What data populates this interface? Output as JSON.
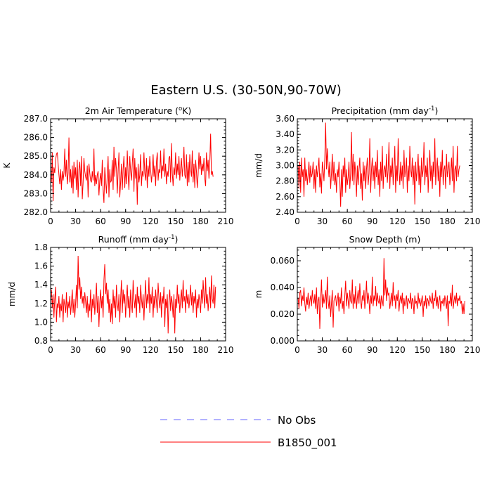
{
  "figure": {
    "title": "Eastern U.S. (30-50N,90-70W)"
  },
  "legend": [
    {
      "label": "No Obs",
      "color": "#6666ff",
      "style": "dashed"
    },
    {
      "label": "B1850_001",
      "color": "#ff0000",
      "style": "solid"
    }
  ],
  "chart_data": [
    {
      "type": "line",
      "title": "2m Air Temperature (",
      "title_sup": "o",
      "title_end": "K)",
      "title_sup2": "",
      "title_end2": "",
      "ylabel": "K",
      "xlabel": "",
      "xlim": [
        0,
        210
      ],
      "ylim": [
        282.0,
        287.0
      ],
      "xticks": [
        "0",
        "30",
        "60",
        "90",
        "120",
        "150",
        "180",
        "210"
      ],
      "yticks": [
        "282.0",
        "283.0",
        "284.0",
        "285.0",
        "286.0",
        "287.0"
      ],
      "series": [
        {
          "name": "B1850_001",
          "color": "#ff0000",
          "x_start": 1,
          "values": [
            283.6,
            285.2,
            282.6,
            284.4,
            284.1,
            284.8,
            285.1,
            285.2,
            284.6,
            284.0,
            283.5,
            284.3,
            283.2,
            284.2,
            283.7,
            284.1,
            285.4,
            283.9,
            284.8,
            283.5,
            284.1,
            286.0,
            283.6,
            284.3,
            283.3,
            284.5,
            283.0,
            284.7,
            283.8,
            284.4,
            283.2,
            284.8,
            282.8,
            284.3,
            284.7,
            283.4,
            285.0,
            282.7,
            283.6,
            284.9,
            284.2,
            283.9,
            283.7,
            284.5,
            282.8,
            284.6,
            284.1,
            283.7,
            283.6,
            284.2,
            283.7,
            285.4,
            283.4,
            284.0,
            283.5,
            284.0,
            284.2,
            282.9,
            283.7,
            284.1,
            283.4,
            284.8,
            283.2,
            282.5,
            284.4,
            283.7,
            283.0,
            284.0,
            285.0,
            282.8,
            284.3,
            283.6,
            283.7,
            284.8,
            283.2,
            285.5,
            283.9,
            284.9,
            284.3,
            283.0,
            284.2,
            285.2,
            282.8,
            283.6,
            284.6,
            283.2,
            284.3,
            285.0,
            283.3,
            284.4,
            283.5,
            285.3,
            284.0,
            283.2,
            285.0,
            284.2,
            283.7,
            284.6,
            285.4,
            283.1,
            284.9,
            283.8,
            284.4,
            282.4,
            284.6,
            283.6,
            284.0,
            285.1,
            283.4,
            284.2,
            283.9,
            285.2,
            284.1,
            283.7,
            284.9,
            283.3,
            284.5,
            283.9,
            285.0,
            284.3,
            283.6,
            284.1,
            285.1,
            283.9,
            284.5,
            283.4,
            284.7,
            285.2,
            283.7,
            284.3,
            284.1,
            285.3,
            283.8,
            284.5,
            284.2,
            285.4,
            283.9,
            284.6,
            283.5,
            284.2,
            283.9,
            284.9,
            285.0,
            283.6,
            285.7,
            284.1,
            283.4,
            284.4,
            284.0,
            285.2,
            283.8,
            284.6,
            284.0,
            285.0,
            283.7,
            284.4,
            284.9,
            283.9,
            284.5,
            285.5,
            284.0,
            283.8,
            285.1,
            283.4,
            284.7,
            283.6,
            285.1,
            284.3,
            283.9,
            285.3,
            283.6,
            284.6,
            283.3,
            284.8,
            284.2,
            283.3,
            284.0,
            285.2,
            284.3,
            285.0,
            284.0,
            284.6,
            284.2,
            284.9,
            283.8,
            283.4,
            285.2,
            284.2,
            284.8,
            283.8,
            284.7,
            286.2,
            284.0,
            284.2,
            283.9
          ]
        }
      ]
    },
    {
      "type": "line",
      "title": "Precipitation (mm day",
      "title_sup": "-1",
      "title_end": ")",
      "title_sup2": "",
      "title_end2": "",
      "ylabel": "mm/d",
      "xlabel": "",
      "xlim": [
        0,
        210
      ],
      "ylim": [
        2.4,
        3.6
      ],
      "xticks": [
        "0",
        "30",
        "60",
        "90",
        "120",
        "150",
        "180",
        "210"
      ],
      "yticks": [
        "2.40",
        "2.60",
        "2.80",
        "3.00",
        "3.20",
        "3.40",
        "3.60"
      ],
      "series": [
        {
          "name": "B1850_001",
          "color": "#ff0000",
          "x_start": 1,
          "values": [
            3.0,
            2.7,
            3.05,
            2.65,
            3.1,
            2.85,
            2.95,
            2.6,
            3.1,
            2.8,
            2.95,
            2.75,
            2.88,
            3.05,
            2.78,
            3.0,
            2.85,
            2.9,
            3.05,
            2.7,
            2.95,
            2.65,
            3.0,
            2.85,
            2.95,
            3.1,
            2.72,
            2.9,
            2.64,
            3.05,
            2.95,
            2.8,
            3.1,
            3.55,
            2.95,
            3.22,
            3.0,
            2.85,
            3.05,
            2.7,
            2.9,
            3.15,
            2.8,
            3.05,
            2.75,
            2.9,
            2.65,
            2.95,
            2.85,
            3.05,
            2.8,
            2.47,
            2.95,
            2.6,
            3.0,
            2.85,
            3.1,
            2.65,
            2.95,
            2.75,
            2.85,
            3.05,
            2.7,
            2.9,
            3.43,
            2.8,
            3.15,
            2.75,
            3.05,
            2.9,
            2.6,
            3.0,
            2.75,
            2.95,
            3.1,
            2.7,
            2.9,
            2.55,
            3.05,
            2.8,
            3.0,
            2.7,
            2.95,
            3.1,
            2.75,
            2.9,
            3.35,
            2.65,
            2.95,
            3.1,
            2.8,
            3.0,
            2.7,
            3.05,
            2.85,
            3.2,
            2.75,
            2.95,
            2.6,
            3.05,
            2.8,
            3.25,
            2.7,
            2.95,
            3.0,
            2.85,
            3.15,
            2.78,
            2.95,
            3.3,
            2.7,
            3.0,
            2.85,
            3.1,
            2.75,
            2.95,
            3.25,
            2.65,
            3.0,
            2.8,
            3.35,
            2.95,
            2.75,
            3.05,
            2.8,
            3.0,
            2.7,
            3.2,
            2.85,
            2.95,
            3.1,
            2.65,
            3.0,
            2.8,
            3.25,
            2.95,
            2.85,
            3.1,
            2.75,
            3.0,
            2.5,
            3.05,
            2.8,
            2.95,
            3.15,
            2.75,
            3.0,
            2.65,
            3.1,
            2.85,
            2.95,
            3.3,
            2.75,
            3.0,
            2.85,
            3.1,
            2.65,
            2.95,
            3.2,
            2.8,
            3.0,
            2.7,
            3.05,
            2.85,
            3.35,
            2.75,
            2.95,
            3.1,
            2.8,
            3.0,
            2.6,
            3.05,
            2.85,
            3.2,
            2.75,
            2.95,
            3.0,
            2.7,
            3.15,
            2.85,
            2.95,
            3.05,
            2.75,
            2.9,
            3.1,
            2.8,
            3.25,
            2.65,
            2.95,
            3.0,
            2.8,
            3.25,
            2.85,
            2.95,
            3.0
          ]
        }
      ]
    },
    {
      "type": "line",
      "title": "Runoff (mm day",
      "title_sup": "-1",
      "title_end": ")",
      "title_sup2": "",
      "title_end2": "",
      "ylabel": "mm/d",
      "xlabel": "",
      "xlim": [
        0,
        210
      ],
      "ylim": [
        0.8,
        1.8
      ],
      "xticks": [
        "0",
        "30",
        "60",
        "90",
        "120",
        "150",
        "180",
        "210"
      ],
      "yticks": [
        "0.8",
        "1.0",
        "1.2",
        "1.4",
        "1.6",
        "1.8"
      ],
      "series": [
        {
          "name": "B1850_001",
          "color": "#ff0000",
          "x_start": 1,
          "values": [
            1.35,
            1.15,
            1.3,
            1.05,
            1.25,
            1.38,
            1.0,
            1.2,
            1.15,
            1.28,
            1.05,
            1.2,
            1.12,
            1.3,
            1.0,
            1.25,
            1.18,
            1.1,
            1.32,
            1.05,
            1.22,
            1.15,
            1.28,
            1.08,
            1.2,
            1.35,
            1.1,
            1.25,
            1.05,
            1.2,
            1.4,
            1.15,
            1.71,
            1.35,
            1.48,
            1.25,
            1.38,
            1.2,
            1.28,
            1.15,
            1.32,
            1.22,
            1.1,
            1.28,
            1.05,
            1.2,
            1.12,
            1.35,
            1.0,
            1.25,
            1.15,
            1.3,
            1.08,
            1.22,
            1.42,
            1.1,
            1.28,
            0.95,
            1.2,
            1.35,
            1.15,
            1.28,
            1.05,
            1.45,
            1.62,
            1.3,
            1.42,
            1.2,
            1.35,
            1.1,
            1.25,
            1.0,
            1.2,
            0.98,
            1.35,
            1.15,
            1.28,
            1.05,
            1.4,
            1.2,
            1.12,
            1.3,
            1.0,
            1.25,
            1.45,
            1.1,
            1.35,
            1.2,
            1.3,
            1.05,
            1.25,
            1.4,
            1.15,
            1.28,
            1.05,
            1.35,
            1.2,
            1.1,
            1.45,
            1.25,
            1.15,
            1.3,
            1.05,
            1.38,
            1.2,
            1.28,
            1.1,
            1.4,
            1.25,
            1.15,
            1.3,
            1.02,
            1.25,
            1.45,
            1.15,
            1.3,
            1.2,
            1.48,
            1.1,
            1.3,
            1.2,
            1.38,
            1.05,
            1.28,
            1.15,
            1.35,
            1.22,
            1.1,
            1.42,
            1.25,
            1.15,
            1.32,
            1.05,
            1.28,
            1.2,
            1.38,
            0.95,
            1.25,
            1.15,
            1.3,
            0.88,
            1.22,
            1.35,
            1.12,
            1.28,
            1.2,
            1.05,
            1.3,
            0.88,
            1.25,
            1.15,
            1.4,
            1.2,
            1.3,
            1.1,
            1.25,
            1.35,
            1.15,
            1.45,
            1.22,
            1.28,
            1.1,
            1.35,
            1.2,
            1.3,
            1.15,
            1.25,
            1.4,
            1.18,
            1.32,
            1.1,
            1.28,
            1.2,
            1.35,
            1.05,
            1.25,
            1.15,
            1.3,
            1.22,
            1.1,
            1.35,
            1.2,
            1.45,
            1.28,
            1.15,
            1.48,
            1.2,
            1.3,
            1.12,
            1.25,
            1.38,
            1.15,
            1.5,
            1.25,
            1.2,
            1.4,
            1.15,
            1.38
          ]
        }
      ]
    },
    {
      "type": "line",
      "title": "Snow Depth (m)",
      "title_sup": "",
      "title_end": "",
      "title_sup2": "",
      "title_end2": "",
      "ylabel": "m",
      "xlabel": "",
      "xlim": [
        0,
        210
      ],
      "ylim": [
        0.0,
        0.07
      ],
      "xticks": [
        "0",
        "30",
        "60",
        "90",
        "120",
        "150",
        "180",
        "210"
      ],
      "yticks": [
        "0.000",
        "0.020",
        "0.040",
        "0.060"
      ],
      "series": [
        {
          "name": "B1850_001",
          "color": "#ff0000",
          "x_start": 1,
          "values": [
            0.032,
            0.024,
            0.036,
            0.038,
            0.026,
            0.034,
            0.03,
            0.04,
            0.028,
            0.022,
            0.033,
            0.027,
            0.036,
            0.024,
            0.03,
            0.034,
            0.026,
            0.038,
            0.03,
            0.028,
            0.035,
            0.024,
            0.04,
            0.02,
            0.03,
            0.033,
            0.009,
            0.03,
            0.046,
            0.025,
            0.035,
            0.028,
            0.032,
            0.038,
            0.024,
            0.048,
            0.03,
            0.024,
            0.034,
            0.018,
            0.028,
            0.038,
            0.01,
            0.03,
            0.032,
            0.034,
            0.026,
            0.03,
            0.036,
            0.022,
            0.033,
            0.028,
            0.04,
            0.024,
            0.03,
            0.02,
            0.034,
            0.045,
            0.026,
            0.036,
            0.03,
            0.024,
            0.038,
            0.03,
            0.028,
            0.046,
            0.024,
            0.035,
            0.028,
            0.041,
            0.024,
            0.032,
            0.038,
            0.028,
            0.043,
            0.03,
            0.024,
            0.034,
            0.03,
            0.038,
            0.024,
            0.032,
            0.045,
            0.028,
            0.036,
            0.03,
            0.02,
            0.034,
            0.028,
            0.048,
            0.026,
            0.034,
            0.03,
            0.041,
            0.026,
            0.036,
            0.03,
            0.028,
            0.034,
            0.024,
            0.034,
            0.03,
            0.026,
            0.062,
            0.034,
            0.046,
            0.03,
            0.04,
            0.034,
            0.036,
            0.024,
            0.03,
            0.036,
            0.026,
            0.044,
            0.03,
            0.034,
            0.024,
            0.035,
            0.03,
            0.038,
            0.022,
            0.03,
            0.034,
            0.028,
            0.036,
            0.02,
            0.032,
            0.026,
            0.03,
            0.034,
            0.024,
            0.032,
            0.03,
            0.028,
            0.036,
            0.024,
            0.032,
            0.03,
            0.02,
            0.034,
            0.028,
            0.03,
            0.024,
            0.036,
            0.028,
            0.032,
            0.026,
            0.03,
            0.034,
            0.018,
            0.03,
            0.026,
            0.034,
            0.024,
            0.032,
            0.03,
            0.026,
            0.034,
            0.03,
            0.028,
            0.036,
            0.024,
            0.032,
            0.03,
            0.038,
            0.026,
            0.033,
            0.024,
            0.03,
            0.034,
            0.022,
            0.03,
            0.028,
            0.032,
            0.026,
            0.034,
            0.03,
            0.024,
            0.034,
            0.011,
            0.03,
            0.028,
            0.036,
            0.026,
            0.042,
            0.024,
            0.03,
            0.034,
            0.028,
            0.036,
            0.026,
            0.032,
            0.03,
            0.034,
            0.028,
            0.03,
            0.02,
            0.028,
            0.02,
            0.03
          ]
        }
      ]
    }
  ]
}
